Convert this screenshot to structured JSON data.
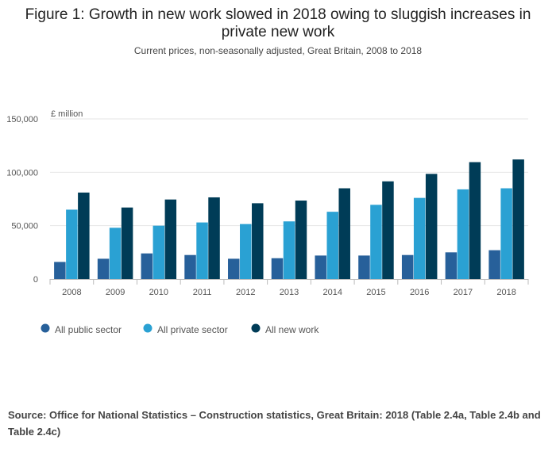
{
  "title": "Figure 1: Growth in new work slowed in 2018 owing to sluggish increases in private new work",
  "subtitle": "Current prices, non-seasonally adjusted, Great Britain, 2008 to 2018",
  "source": "Source: Office for National Statistics – Construction statistics, Great Britain: 2018 (Table 2.4a, Table 2.4b and Table 2.4c)",
  "chart_data": {
    "type": "bar",
    "ylabel": "£ million",
    "ylim": [
      0,
      150000
    ],
    "yticks": [
      0,
      50000,
      100000,
      150000
    ],
    "ytick_labels": [
      "0",
      "50,000",
      "100,000",
      "150,000"
    ],
    "categories": [
      "2008",
      "2009",
      "2010",
      "2011",
      "2012",
      "2013",
      "2014",
      "2015",
      "2016",
      "2017",
      "2018"
    ],
    "series": [
      {
        "name": "All public sector",
        "color": "#27609a",
        "values": [
          16000,
          19000,
          24000,
          22500,
          19000,
          19500,
          22000,
          22000,
          22500,
          25000,
          27000
        ]
      },
      {
        "name": "All private sector",
        "color": "#2aa1d3",
        "values": [
          65000,
          48000,
          50000,
          53000,
          51500,
          54000,
          63000,
          69500,
          76000,
          84000,
          85000
        ]
      },
      {
        "name": "All new work",
        "color": "#003c57",
        "values": [
          81000,
          67000,
          74500,
          76500,
          71000,
          73500,
          85000,
          91500,
          98500,
          109500,
          112000
        ]
      }
    ],
    "grid": true,
    "legend_position": "bottom-left"
  }
}
